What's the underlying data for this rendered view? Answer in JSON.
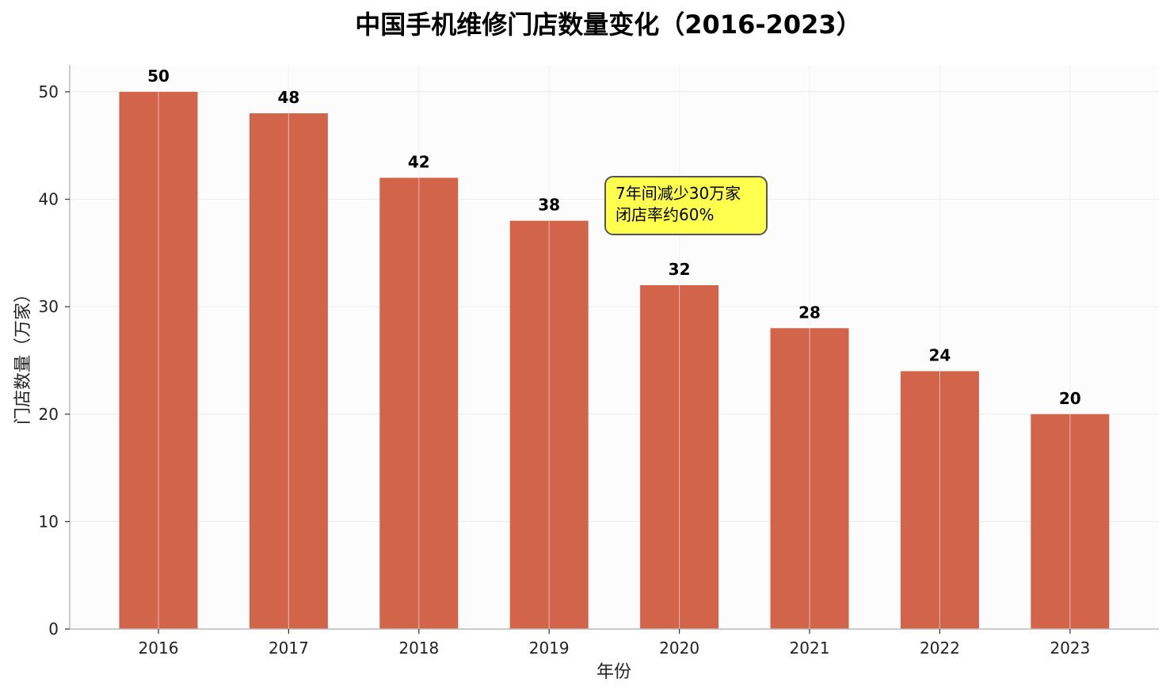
{
  "chart_data": {
    "type": "bar",
    "title": "中国手机维修门店数量变化（2016-2023）",
    "xlabel": "年份",
    "ylabel": "门店数量（万家）",
    "categories": [
      "2016",
      "2017",
      "2018",
      "2019",
      "2020",
      "2021",
      "2022",
      "2023"
    ],
    "series": [
      {
        "values": [
          50,
          48,
          42,
          38,
          32,
          28,
          24,
          20
        ]
      }
    ],
    "data_labels": [
      "50",
      "48",
      "42",
      "38",
      "32",
      "28",
      "24",
      "20"
    ],
    "ylim": [
      0,
      52.5
    ],
    "yticks": [
      0,
      10,
      20,
      30,
      40,
      50
    ],
    "grid": true,
    "annotation": {
      "lines": [
        "7年间减少30万家",
        "闭店率约60%"
      ]
    },
    "colors": {
      "bar": "#d2644a",
      "annotation_fill": "#ffff4d",
      "plot_background": "#fcfcfc",
      "grid": "#ececec"
    }
  }
}
